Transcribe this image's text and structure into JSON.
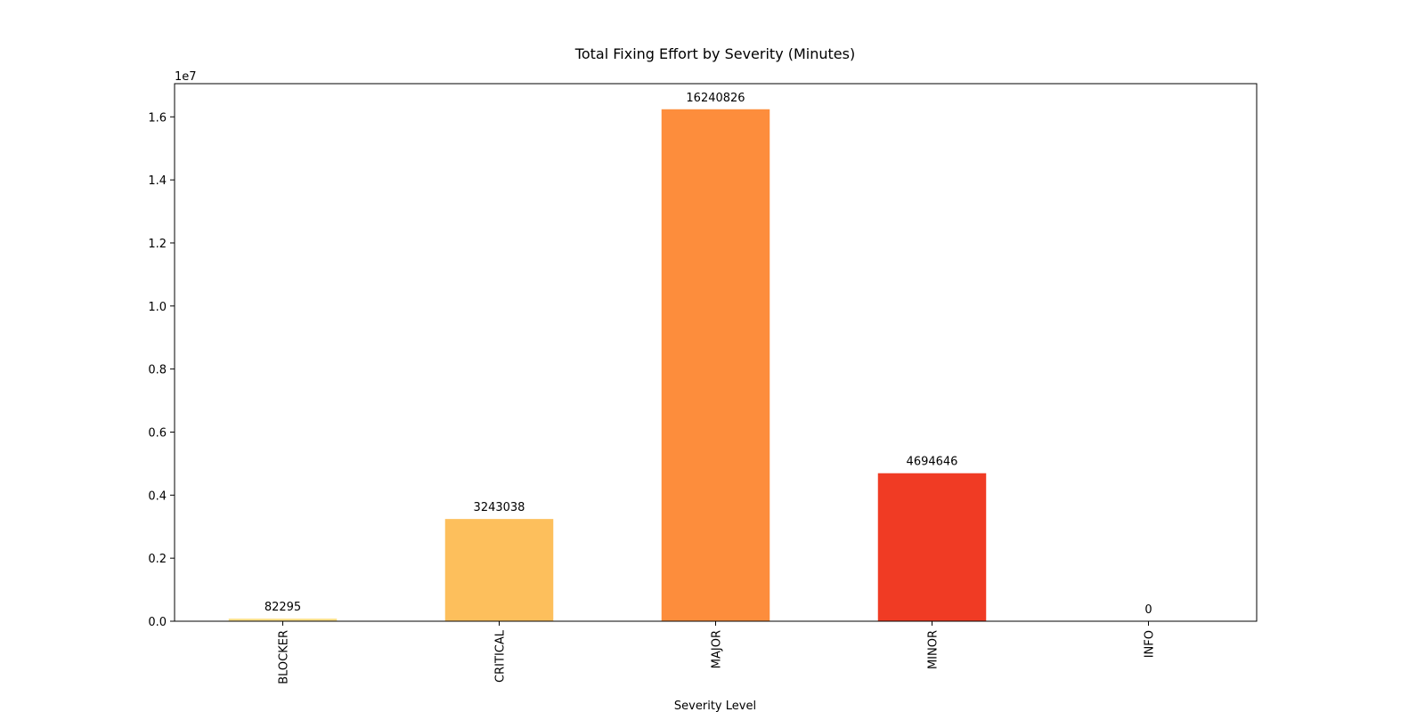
{
  "chart_data": {
    "type": "bar",
    "title": "Total Fixing Effort by Severity (Minutes)",
    "x_label": "Severity Level",
    "y_offset_label": "1e7",
    "categories": [
      "BLOCKER",
      "CRITICAL",
      "MAJOR",
      "MINOR",
      "INFO"
    ],
    "values": [
      82295,
      3243038,
      16240826,
      4694646,
      0
    ],
    "colors": [
      "#fee08b",
      "#fdbf5c",
      "#fd8d3c",
      "#f03b24",
      "#bd0026"
    ],
    "ylim": [
      0,
      17052867
    ],
    "yticks": [
      {
        "value": 0,
        "label": "0.0"
      },
      {
        "value": 2000000,
        "label": "0.2"
      },
      {
        "value": 4000000,
        "label": "0.4"
      },
      {
        "value": 6000000,
        "label": "0.6"
      },
      {
        "value": 8000000,
        "label": "0.8"
      },
      {
        "value": 10000000,
        "label": "1.0"
      },
      {
        "value": 12000000,
        "label": "1.2"
      },
      {
        "value": 14000000,
        "label": "1.4"
      },
      {
        "value": 16000000,
        "label": "1.6"
      }
    ]
  }
}
